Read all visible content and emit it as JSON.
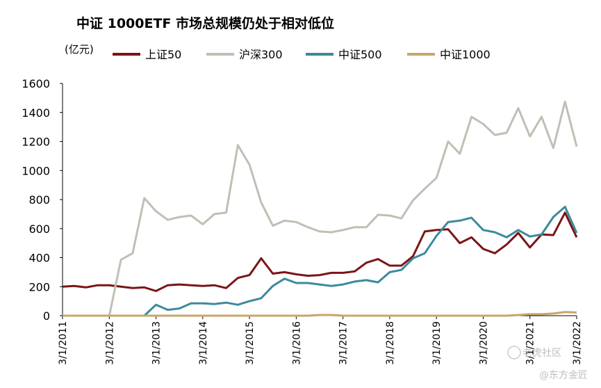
{
  "chart_data": {
    "type": "line",
    "title": "中证 1000ETF 市场总规模仍处于相对低位",
    "ylabel": "(亿元)",
    "xlabel": "",
    "ylim": [
      0,
      1600
    ],
    "yticks": [
      0,
      200,
      400,
      600,
      800,
      1000,
      1200,
      1400,
      1600
    ],
    "xtick_labels": [
      "3/1/2011",
      "3/1/2012",
      "3/1/2013",
      "3/1/2014",
      "3/1/2015",
      "3/1/2016",
      "3/1/2017",
      "3/1/2018",
      "3/1/2019",
      "3/1/2020",
      "3/1/2021",
      "3/1/2022"
    ],
    "x_start": "2011-03",
    "x_step": "quarter",
    "legend_position": "top",
    "grid": false,
    "series": [
      {
        "name": "上证50",
        "color": "#7b1417",
        "values": [
          200,
          205,
          195,
          210,
          210,
          200,
          190,
          195,
          170,
          210,
          215,
          210,
          205,
          210,
          190,
          260,
          280,
          395,
          290,
          300,
          285,
          275,
          280,
          295,
          295,
          305,
          365,
          390,
          345,
          345,
          410,
          580,
          590,
          595,
          500,
          540,
          460,
          430,
          490,
          570,
          470,
          560,
          555,
          710,
          540
        ]
      },
      {
        "name": "沪深300",
        "color": "#bfbfb5",
        "values": [
          0,
          0,
          0,
          0,
          0,
          385,
          430,
          810,
          720,
          660,
          680,
          690,
          630,
          700,
          710,
          1175,
          1040,
          780,
          620,
          655,
          645,
          610,
          580,
          575,
          590,
          610,
          610,
          695,
          690,
          670,
          795,
          875,
          950,
          1200,
          1115,
          1370,
          1320,
          1245,
          1260,
          1430,
          1235,
          1370,
          1155,
          1475,
          1165
        ]
      },
      {
        "name": "中证500",
        "color": "#3b8a9c",
        "values": [
          null,
          null,
          null,
          null,
          null,
          null,
          null,
          0,
          75,
          40,
          50,
          85,
          85,
          80,
          90,
          75,
          100,
          120,
          205,
          255,
          225,
          225,
          215,
          205,
          215,
          235,
          245,
          230,
          300,
          315,
          395,
          430,
          550,
          645,
          655,
          675,
          590,
          575,
          540,
          590,
          545,
          560,
          680,
          750,
          570
        ]
      },
      {
        "name": "中证1000",
        "color": "#c9a46a",
        "values": [
          0,
          0,
          0,
          0,
          0,
          0,
          0,
          0,
          0,
          0,
          0,
          0,
          0,
          0,
          0,
          0,
          0,
          0,
          0,
          0,
          0,
          0,
          5,
          5,
          0,
          0,
          0,
          0,
          0,
          0,
          0,
          0,
          0,
          0,
          0,
          0,
          0,
          0,
          0,
          5,
          10,
          10,
          15,
          25,
          22
        ]
      }
    ]
  },
  "watermark": {
    "line1": "老虎社区",
    "line2": "@东方金匠"
  }
}
